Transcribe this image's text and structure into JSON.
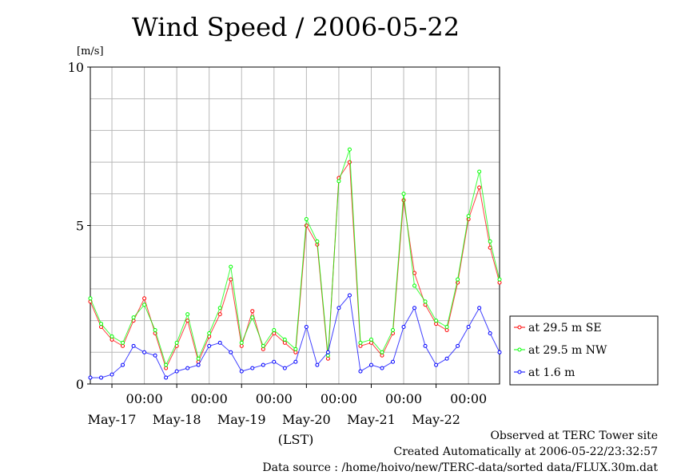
{
  "chart_data": {
    "type": "line",
    "title": "Wind Speed / 2006-05-22",
    "ylabel": "[m/s]",
    "xlabel": "(LST)",
    "ylim": [
      0,
      10
    ],
    "yticks": [
      0,
      5,
      10
    ],
    "x_start": "2006-05-16 16:00",
    "x_end": "2006-05-22 23:30",
    "x_ticks": [
      {
        "time": "00:00",
        "date": "May-17"
      },
      {
        "time": "00:00",
        "date": "May-18"
      },
      {
        "time": "00:00",
        "date": "May-19"
      },
      {
        "time": "00:00",
        "date": "May-20"
      },
      {
        "time": "00:00",
        "date": "May-21"
      },
      {
        "time": "00:00",
        "date": "May-22"
      }
    ],
    "grid": true,
    "legend_position": "right",
    "series": [
      {
        "name": "at 29.5 m SE",
        "color": "#ff0000",
        "points": [
          [
            "2006-05-16 16:00",
            2.6
          ],
          [
            "2006-05-16 20:00",
            1.8
          ],
          [
            "2006-05-17 00:00",
            1.4
          ],
          [
            "2006-05-17 04:00",
            1.2
          ],
          [
            "2006-05-17 08:00",
            2.0
          ],
          [
            "2006-05-17 12:00",
            2.7
          ],
          [
            "2006-05-17 16:00",
            1.6
          ],
          [
            "2006-05-17 20:00",
            0.5
          ],
          [
            "2006-05-18 00:00",
            1.2
          ],
          [
            "2006-05-18 04:00",
            2.0
          ],
          [
            "2006-05-18 08:00",
            0.7
          ],
          [
            "2006-05-18 12:00",
            1.5
          ],
          [
            "2006-05-18 16:00",
            2.2
          ],
          [
            "2006-05-18 20:00",
            3.3
          ],
          [
            "2006-05-19 00:00",
            1.2
          ],
          [
            "2006-05-19 04:00",
            2.3
          ],
          [
            "2006-05-19 08:00",
            1.1
          ],
          [
            "2006-05-19 12:00",
            1.6
          ],
          [
            "2006-05-19 16:00",
            1.3
          ],
          [
            "2006-05-19 20:00",
            1.0
          ],
          [
            "2006-05-20 00:00",
            5.0
          ],
          [
            "2006-05-20 04:00",
            4.4
          ],
          [
            "2006-05-20 08:00",
            0.8
          ],
          [
            "2006-05-20 12:00",
            6.5
          ],
          [
            "2006-05-20 16:00",
            7.0
          ],
          [
            "2006-05-20 20:00",
            1.2
          ],
          [
            "2006-05-21 00:00",
            1.3
          ],
          [
            "2006-05-21 04:00",
            0.9
          ],
          [
            "2006-05-21 08:00",
            1.6
          ],
          [
            "2006-05-21 12:00",
            5.8
          ],
          [
            "2006-05-21 16:00",
            3.5
          ],
          [
            "2006-05-21 20:00",
            2.5
          ],
          [
            "2006-05-22 00:00",
            1.9
          ],
          [
            "2006-05-22 04:00",
            1.7
          ],
          [
            "2006-05-22 08:00",
            3.2
          ],
          [
            "2006-05-22 12:00",
            5.2
          ],
          [
            "2006-05-22 16:00",
            6.2
          ],
          [
            "2006-05-22 20:00",
            4.3
          ],
          [
            "2006-05-22 23:30",
            3.2
          ]
        ]
      },
      {
        "name": "at 29.5 m NW",
        "color": "#00ff00",
        "points": [
          [
            "2006-05-16 16:00",
            2.7
          ],
          [
            "2006-05-16 20:00",
            1.9
          ],
          [
            "2006-05-17 00:00",
            1.5
          ],
          [
            "2006-05-17 04:00",
            1.3
          ],
          [
            "2006-05-17 08:00",
            2.1
          ],
          [
            "2006-05-17 12:00",
            2.5
          ],
          [
            "2006-05-17 16:00",
            1.7
          ],
          [
            "2006-05-17 20:00",
            0.6
          ],
          [
            "2006-05-18 00:00",
            1.3
          ],
          [
            "2006-05-18 04:00",
            2.2
          ],
          [
            "2006-05-18 08:00",
            0.8
          ],
          [
            "2006-05-18 12:00",
            1.6
          ],
          [
            "2006-05-18 16:00",
            2.4
          ],
          [
            "2006-05-18 20:00",
            3.7
          ],
          [
            "2006-05-19 00:00",
            1.3
          ],
          [
            "2006-05-19 04:00",
            2.1
          ],
          [
            "2006-05-19 08:00",
            1.2
          ],
          [
            "2006-05-19 12:00",
            1.7
          ],
          [
            "2006-05-19 16:00",
            1.4
          ],
          [
            "2006-05-19 20:00",
            1.1
          ],
          [
            "2006-05-20 00:00",
            5.2
          ],
          [
            "2006-05-20 04:00",
            4.5
          ],
          [
            "2006-05-20 08:00",
            0.9
          ],
          [
            "2006-05-20 12:00",
            6.4
          ],
          [
            "2006-05-20 16:00",
            7.4
          ],
          [
            "2006-05-20 20:00",
            1.3
          ],
          [
            "2006-05-21 00:00",
            1.4
          ],
          [
            "2006-05-21 04:00",
            1.0
          ],
          [
            "2006-05-21 08:00",
            1.7
          ],
          [
            "2006-05-21 12:00",
            6.0
          ],
          [
            "2006-05-21 16:00",
            3.1
          ],
          [
            "2006-05-21 20:00",
            2.6
          ],
          [
            "2006-05-22 00:00",
            2.0
          ],
          [
            "2006-05-22 04:00",
            1.8
          ],
          [
            "2006-05-22 08:00",
            3.3
          ],
          [
            "2006-05-22 12:00",
            5.3
          ],
          [
            "2006-05-22 16:00",
            6.7
          ],
          [
            "2006-05-22 20:00",
            4.5
          ],
          [
            "2006-05-22 23:30",
            3.3
          ]
        ]
      },
      {
        "name": "at 1.6 m",
        "color": "#0000ff",
        "points": [
          [
            "2006-05-16 16:00",
            0.2
          ],
          [
            "2006-05-16 20:00",
            0.2
          ],
          [
            "2006-05-17 00:00",
            0.3
          ],
          [
            "2006-05-17 04:00",
            0.6
          ],
          [
            "2006-05-17 08:00",
            1.2
          ],
          [
            "2006-05-17 12:00",
            1.0
          ],
          [
            "2006-05-17 16:00",
            0.9
          ],
          [
            "2006-05-17 20:00",
            0.2
          ],
          [
            "2006-05-18 00:00",
            0.4
          ],
          [
            "2006-05-18 04:00",
            0.5
          ],
          [
            "2006-05-18 08:00",
            0.6
          ],
          [
            "2006-05-18 12:00",
            1.2
          ],
          [
            "2006-05-18 16:00",
            1.3
          ],
          [
            "2006-05-18 20:00",
            1.0
          ],
          [
            "2006-05-19 00:00",
            0.4
          ],
          [
            "2006-05-19 04:00",
            0.5
          ],
          [
            "2006-05-19 08:00",
            0.6
          ],
          [
            "2006-05-19 12:00",
            0.7
          ],
          [
            "2006-05-19 16:00",
            0.5
          ],
          [
            "2006-05-19 20:00",
            0.7
          ],
          [
            "2006-05-20 00:00",
            1.8
          ],
          [
            "2006-05-20 04:00",
            0.6
          ],
          [
            "2006-05-20 08:00",
            1.0
          ],
          [
            "2006-05-20 12:00",
            2.4
          ],
          [
            "2006-05-20 16:00",
            2.8
          ],
          [
            "2006-05-20 20:00",
            0.4
          ],
          [
            "2006-05-21 00:00",
            0.6
          ],
          [
            "2006-05-21 04:00",
            0.5
          ],
          [
            "2006-05-21 08:00",
            0.7
          ],
          [
            "2006-05-21 12:00",
            1.8
          ],
          [
            "2006-05-21 16:00",
            2.4
          ],
          [
            "2006-05-21 20:00",
            1.2
          ],
          [
            "2006-05-22 00:00",
            0.6
          ],
          [
            "2006-05-22 04:00",
            0.8
          ],
          [
            "2006-05-22 08:00",
            1.2
          ],
          [
            "2006-05-22 12:00",
            1.8
          ],
          [
            "2006-05-22 16:00",
            2.4
          ],
          [
            "2006-05-22 20:00",
            1.6
          ],
          [
            "2006-05-22 23:30",
            1.0
          ]
        ]
      }
    ]
  },
  "footer": {
    "line1": "Observed at TERC Tower site",
    "line2": "Created Automatically at 2006-05-22/23:32:57",
    "line3": "Data source : /home/hoivo/new/TERC-data/sorted  data/FLUX.30m.dat"
  }
}
